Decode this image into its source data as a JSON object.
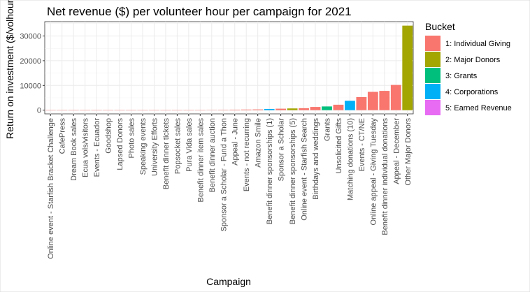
{
  "chart_data": {
    "type": "bar",
    "title": "Net revenue ($) per volunteer hour per campaign for 2021",
    "xlabel": "Campaign",
    "ylabel": "Return on investment ($/volhour)",
    "ylim": [
      -1500,
      35800
    ],
    "yticks": [
      0,
      10000,
      20000,
      30000
    ],
    "grid": true,
    "legend": {
      "title": "Bucket",
      "placement": "right",
      "entries": [
        {
          "label": "1: Individual Giving",
          "color": "#F8766D"
        },
        {
          "label": "2: Major Donors",
          "color": "#A3A500"
        },
        {
          "label": "3: Grants",
          "color": "#00BF7D"
        },
        {
          "label": "4: Corporations",
          "color": "#00B0F6"
        },
        {
          "label": "5: Earned Revenue",
          "color": "#E76BF3"
        }
      ]
    },
    "categories": [
      "Online event - Starfish Bracket Challenge",
      "CafePress",
      "Dream Book sales",
      "Ecua vols/visitors",
      "Events - Ecuador",
      "Goodshop",
      "Lapsed Donors",
      "Photo sales",
      "Speaking events",
      "University Efforts",
      "Benefit dinner tickets",
      "Popsocket sales",
      "Pura Vida sales",
      "Benefit dinner item sales",
      "Benefit dinner auction",
      "Sponsor a Scholar - Fund a Thon",
      "Appeal - June",
      "Events - not recurring",
      "Amazon Smile",
      "Benefit dinner sponsorships (1)",
      "Sponsor a Scholar",
      "Benefit dinner sponsorships (5)",
      "Online event - Starfish Search",
      "Birthdays and weddings",
      "Grants",
      "Unsolicited Gifts",
      "Matching donations (10)",
      "Events - CT/NE",
      "Online appeal - Giving Tuesday",
      "Benefit dinner individual donations",
      "Appeal - December",
      "Other Major Donors"
    ],
    "values": [
      -50,
      0,
      0,
      0,
      0,
      0,
      0,
      0,
      0,
      0,
      0,
      0,
      0,
      0,
      50,
      150,
      200,
      250,
      300,
      500,
      600,
      700,
      800,
      1300,
      1500,
      2200,
      3800,
      5300,
      7400,
      7800,
      10200,
      34200
    ],
    "buckets": [
      "1: Individual Giving",
      "1: Individual Giving",
      "1: Individual Giving",
      "1: Individual Giving",
      "1: Individual Giving",
      "1: Individual Giving",
      "1: Individual Giving",
      "1: Individual Giving",
      "1: Individual Giving",
      "1: Individual Giving",
      "1: Individual Giving",
      "1: Individual Giving",
      "1: Individual Giving",
      "1: Individual Giving",
      "1: Individual Giving",
      "1: Individual Giving",
      "1: Individual Giving",
      "1: Individual Giving",
      "1: Individual Giving",
      "4: Corporations",
      "1: Individual Giving",
      "2: Major Donors",
      "1: Individual Giving",
      "1: Individual Giving",
      "3: Grants",
      "1: Individual Giving",
      "4: Corporations",
      "1: Individual Giving",
      "1: Individual Giving",
      "1: Individual Giving",
      "1: Individual Giving",
      "2: Major Donors"
    ]
  }
}
